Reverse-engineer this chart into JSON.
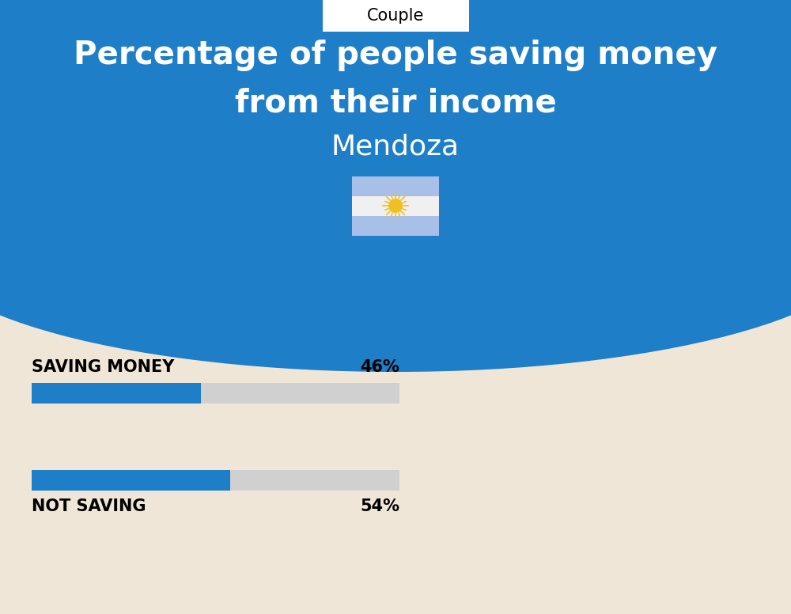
{
  "title_line1": "Percentage of people saving money",
  "title_line2": "from their income",
  "subtitle": "Mendoza",
  "tab_label": "Couple",
  "bg_color": "#f0e6d8",
  "blue_color": "#1e7ec8",
  "bar_bg_color": "#d0d0d0",
  "label1": "SAVING MONEY",
  "value1": 46,
  "label1_text": "46%",
  "label2": "NOT SAVING",
  "value2": 54,
  "label2_text": "54%",
  "title_color": "#ffffff",
  "label_color": "#000000",
  "fig_width": 10.0,
  "fig_height": 7.76,
  "flag_light_blue": "#a8c0e8",
  "flag_white": "#f0f0f0",
  "flag_sun_color": "#f0c020"
}
